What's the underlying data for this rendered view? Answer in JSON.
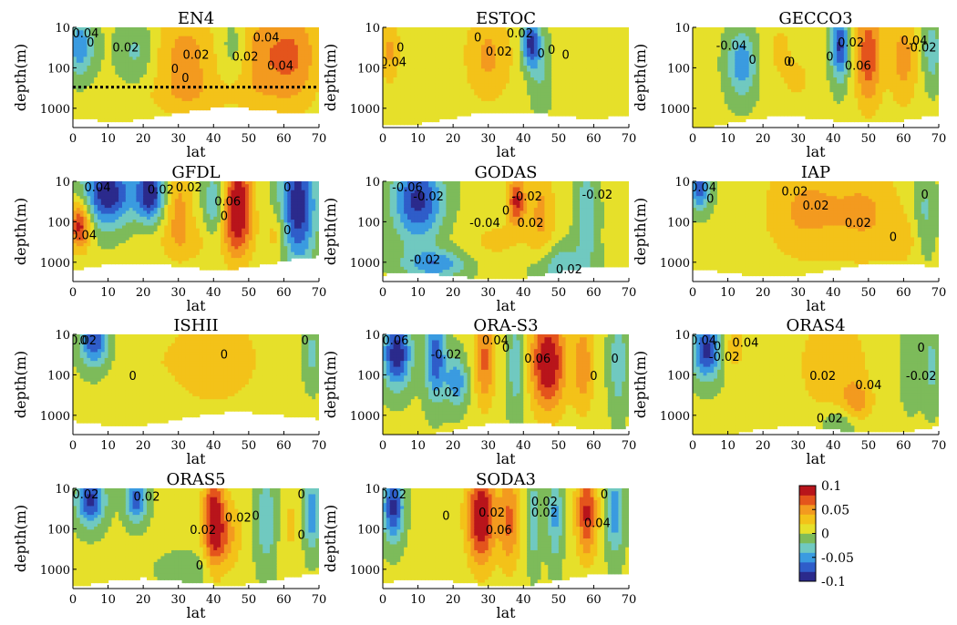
{
  "chart_data": {
    "type": "heatmap",
    "x_label": "lat",
    "y_label": "depth(m)",
    "x_ticks": [
      0,
      10,
      20,
      30,
      40,
      50,
      60,
      70
    ],
    "y_ticks": [
      "10",
      "100",
      "1000"
    ],
    "x_range": [
      0,
      70
    ],
    "y_range": [
      10,
      3000
    ],
    "y_scale": "log",
    "colormap": {
      "name": "jet-like",
      "range": [
        -0.1,
        0.1
      ],
      "ticks": [
        "0.1",
        "0.05",
        "0",
        "-0.05",
        "-0.1"
      ],
      "levels": [
        -0.1,
        -0.08,
        -0.06,
        -0.04,
        -0.02,
        0,
        0.02,
        0.04,
        0.06,
        0.08,
        0.1
      ],
      "colors": [
        "#2b2a8c",
        "#2f5dc9",
        "#3a9be0",
        "#70c9c0",
        "#7dbb5a",
        "#e6e02a",
        "#f3c219",
        "#f39a1f",
        "#e4541c",
        "#b8141b"
      ]
    },
    "panels": [
      {
        "title": "EN4",
        "bottom_depth": 1700,
        "reference_line_depth": 300,
        "contour_labels": [
          "-0.04",
          "0.02",
          "0.04",
          "0.04",
          "0.02",
          "0.02",
          "0",
          "0",
          "0"
        ],
        "features": [
          {
            "lat": 2,
            "depth": 30,
            "value": -0.06,
            "lat_width": 4,
            "depth_span": 0.7
          },
          {
            "lat": 32,
            "depth": 60,
            "value": 0.045,
            "lat_width": 9,
            "depth_span": 1.2
          },
          {
            "lat": 62,
            "depth": 50,
            "value": 0.06,
            "lat_width": 8,
            "depth_span": 1.3
          },
          {
            "lat": 52,
            "depth": 50,
            "value": 0.035,
            "lat_width": 6,
            "depth_span": 1.2
          },
          {
            "lat": 18,
            "depth": 40,
            "value": -0.03,
            "lat_width": 5,
            "depth_span": 0.8
          },
          {
            "lat": 46,
            "depth": 30,
            "value": -0.025,
            "lat_width": 4,
            "depth_span": 0.7
          },
          {
            "lat": 35,
            "depth": 500,
            "value": 0.015,
            "lat_width": 20,
            "depth_span": 0.5
          }
        ]
      },
      {
        "title": "ESTOC",
        "bottom_depth": 2000,
        "contour_labels": [
          "0.02",
          "0.02",
          "0.04",
          "0",
          "0",
          "0",
          "0",
          "0"
        ],
        "features": [
          {
            "lat": 42,
            "depth": 25,
            "value": -0.09,
            "lat_width": 2.5,
            "depth_span": 0.6
          },
          {
            "lat": 30,
            "depth": 50,
            "value": 0.04,
            "lat_width": 7,
            "depth_span": 1.2
          },
          {
            "lat": 2,
            "depth": 40,
            "value": 0.04,
            "lat_width": 3,
            "depth_span": 0.8
          },
          {
            "lat": 45,
            "depth": 100,
            "value": -0.03,
            "lat_width": 3,
            "depth_span": 1.0
          },
          {
            "lat": 55,
            "depth": 60,
            "value": 0.01,
            "lat_width": 10,
            "depth_span": 1.0
          }
        ]
      },
      {
        "title": "GECCO3",
        "bottom_depth": 2500,
        "contour_labels": [
          "-0.04",
          "0.02",
          "0.06",
          "0.04",
          "-0.02",
          "0",
          "0",
          "0",
          "0"
        ],
        "features": [
          {
            "lat": 14,
            "depth": 80,
            "value": -0.06,
            "lat_width": 4,
            "depth_span": 0.8
          },
          {
            "lat": 42,
            "depth": 30,
            "value": -0.09,
            "lat_width": 2.5,
            "depth_span": 0.8
          },
          {
            "lat": 50,
            "depth": 50,
            "value": 0.07,
            "lat_width": 4,
            "depth_span": 1.3
          },
          {
            "lat": 60,
            "depth": 60,
            "value": 0.045,
            "lat_width": 4,
            "depth_span": 1.2
          },
          {
            "lat": 68,
            "depth": 40,
            "value": -0.04,
            "lat_width": 2.5,
            "depth_span": 0.8
          },
          {
            "lat": 25,
            "depth": 40,
            "value": 0.02,
            "lat_width": 5,
            "depth_span": 1.0
          },
          {
            "lat": 30,
            "depth": 200,
            "value": 0.025,
            "lat_width": 3,
            "depth_span": 0.4
          }
        ]
      },
      {
        "title": "GFDL",
        "bottom_depth": 1500,
        "contour_labels": [
          "0.04",
          "0.02",
          "0.04",
          "0.02",
          "0.06",
          "0",
          "0",
          "0"
        ],
        "features": [
          {
            "lat": 10,
            "depth": 20,
            "value": -0.1,
            "lat_width": 7,
            "depth_span": 0.8
          },
          {
            "lat": 22,
            "depth": 20,
            "value": -0.1,
            "lat_width": 4,
            "depth_span": 0.7
          },
          {
            "lat": 2,
            "depth": 120,
            "value": 0.09,
            "lat_width": 3,
            "depth_span": 0.6
          },
          {
            "lat": 30,
            "depth": 40,
            "value": 0.04,
            "lat_width": 4,
            "depth_span": 1.1
          },
          {
            "lat": 47,
            "depth": 40,
            "value": 0.1,
            "lat_width": 4,
            "depth_span": 1.2
          },
          {
            "lat": 40,
            "depth": 40,
            "value": -0.04,
            "lat_width": 3,
            "depth_span": 1.0
          },
          {
            "lat": 64,
            "depth": 40,
            "value": -0.1,
            "lat_width": 5,
            "depth_span": 1.4
          },
          {
            "lat": 58,
            "depth": 200,
            "value": 0.03,
            "lat_width": 3,
            "depth_span": 0.6
          },
          {
            "lat": 35,
            "depth": 300,
            "value": 0.02,
            "lat_width": 15,
            "depth_span": 0.6
          }
        ]
      },
      {
        "title": "GODAS",
        "bottom_depth": 2500,
        "contour_labels": [
          "-0.06",
          "-0.02",
          "0.02",
          "-0.02",
          "-0.02",
          "0.02",
          "-0.04",
          "-0.02",
          "0"
        ],
        "features": [
          {
            "lat": 10,
            "depth": 30,
            "value": -0.09,
            "lat_width": 7,
            "depth_span": 1.0
          },
          {
            "lat": 38,
            "depth": 30,
            "value": 0.08,
            "lat_width": 2.5,
            "depth_span": 0.6
          },
          {
            "lat": 45,
            "depth": 60,
            "value": 0.04,
            "lat_width": 4,
            "depth_span": 1.3
          },
          {
            "lat": 58,
            "depth": 60,
            "value": -0.04,
            "lat_width": 3,
            "depth_span": 1.3
          },
          {
            "lat": 15,
            "depth": 1100,
            "value": -0.06,
            "lat_width": 9,
            "depth_span": 0.35
          },
          {
            "lat": 50,
            "depth": 1200,
            "value": -0.04,
            "lat_width": 8,
            "depth_span": 0.5
          },
          {
            "lat": 32,
            "depth": 300,
            "value": 0.02,
            "lat_width": 10,
            "depth_span": 0.6
          }
        ]
      },
      {
        "title": "IAP",
        "bottom_depth": 2000,
        "contour_labels": [
          "0.04",
          "0.02",
          "0.02",
          "0",
          "0",
          "0",
          "0.02"
        ],
        "features": [
          {
            "lat": 2,
            "depth": 15,
            "value": -0.08,
            "lat_width": 3,
            "depth_span": 0.5
          },
          {
            "lat": 32,
            "depth": 50,
            "value": 0.04,
            "lat_width": 12,
            "depth_span": 1.3
          },
          {
            "lat": 50,
            "depth": 60,
            "value": 0.035,
            "lat_width": 10,
            "depth_span": 1.3
          },
          {
            "lat": 66,
            "depth": 60,
            "value": -0.03,
            "lat_width": 3,
            "depth_span": 1.0
          },
          {
            "lat": 60,
            "depth": 300,
            "value": 0.02,
            "lat_width": 5,
            "depth_span": 0.6
          }
        ]
      },
      {
        "title": "ISHII",
        "bottom_depth": 1500,
        "contour_labels": [
          "0.02",
          "0",
          "0",
          "0",
          "0"
        ],
        "features": [
          {
            "lat": 6,
            "depth": 15,
            "value": -0.08,
            "lat_width": 4,
            "depth_span": 0.6
          },
          {
            "lat": 40,
            "depth": 40,
            "value": 0.03,
            "lat_width": 15,
            "depth_span": 1.3
          },
          {
            "lat": 20,
            "depth": 60,
            "value": 0.01,
            "lat_width": 6,
            "depth_span": 1.0
          },
          {
            "lat": 68,
            "depth": 30,
            "value": -0.03,
            "lat_width": 2.5,
            "depth_span": 0.8
          }
        ]
      },
      {
        "title": "ORA-S3",
        "bottom_depth": 2500,
        "contour_labels": [
          "-0.06",
          "-0.02",
          "0.02",
          "0.04",
          "0.06",
          "0",
          "0",
          "0"
        ],
        "features": [
          {
            "lat": 4,
            "depth": 30,
            "value": -0.1,
            "lat_width": 4,
            "depth_span": 0.8
          },
          {
            "lat": 15,
            "depth": 40,
            "value": -0.08,
            "lat_width": 3,
            "depth_span": 1.0
          },
          {
            "lat": 21,
            "depth": 150,
            "value": -0.06,
            "lat_width": 3,
            "depth_span": 0.6
          },
          {
            "lat": 29,
            "depth": 40,
            "value": 0.06,
            "lat_width": 3,
            "depth_span": 1.2
          },
          {
            "lat": 47,
            "depth": 50,
            "value": 0.1,
            "lat_width": 5,
            "depth_span": 1.2
          },
          {
            "lat": 57,
            "depth": 60,
            "value": 0.05,
            "lat_width": 3,
            "depth_span": 1.2
          },
          {
            "lat": 38,
            "depth": 60,
            "value": -0.04,
            "lat_width": 2.5,
            "depth_span": 1.2
          },
          {
            "lat": 67,
            "depth": 50,
            "value": -0.04,
            "lat_width": 2.5,
            "depth_span": 1.2
          }
        ]
      },
      {
        "title": "ORAS4",
        "bottom_depth": 3000,
        "contour_labels": [
          "0.04",
          "0.04",
          "0.02",
          "0.04",
          "0.02",
          "-0.02",
          "0",
          "0",
          "-0.02"
        ],
        "features": [
          {
            "lat": 4,
            "depth": 25,
            "value": -0.09,
            "lat_width": 4,
            "depth_span": 0.7
          },
          {
            "lat": 12,
            "depth": 20,
            "value": 0.03,
            "lat_width": 3,
            "depth_span": 0.6
          },
          {
            "lat": 40,
            "depth": 60,
            "value": 0.035,
            "lat_width": 10,
            "depth_span": 1.3
          },
          {
            "lat": 47,
            "depth": 500,
            "value": 0.04,
            "lat_width": 4,
            "depth_span": 0.5
          },
          {
            "lat": 42,
            "depth": 1500,
            "value": -0.03,
            "lat_width": 6,
            "depth_span": 0.4
          },
          {
            "lat": 62,
            "depth": 60,
            "value": -0.02,
            "lat_width": 3,
            "depth_span": 1.0
          },
          {
            "lat": 68,
            "depth": 60,
            "value": -0.03,
            "lat_width": 2.5,
            "depth_span": 1.0
          }
        ]
      },
      {
        "title": "ORAS5",
        "bottom_depth": 2500,
        "contour_labels": [
          "-0.02",
          "0.02",
          "0.02",
          "0.02",
          "0",
          "0",
          "0",
          "0"
        ],
        "features": [
          {
            "lat": 5,
            "depth": 20,
            "value": -0.09,
            "lat_width": 4,
            "depth_span": 0.6
          },
          {
            "lat": 18,
            "depth": 20,
            "value": -0.08,
            "lat_width": 3,
            "depth_span": 0.5
          },
          {
            "lat": 40,
            "depth": 60,
            "value": 0.09,
            "lat_width": 3,
            "depth_span": 1.2
          },
          {
            "lat": 44,
            "depth": 150,
            "value": 0.04,
            "lat_width": 4,
            "depth_span": 0.9
          },
          {
            "lat": 55,
            "depth": 60,
            "value": -0.04,
            "lat_width": 3,
            "depth_span": 1.2
          },
          {
            "lat": 62,
            "depth": 80,
            "value": 0.02,
            "lat_width": 3,
            "depth_span": 1.0
          },
          {
            "lat": 68,
            "depth": 40,
            "value": -0.06,
            "lat_width": 2.5,
            "depth_span": 0.9
          },
          {
            "lat": 33,
            "depth": 1000,
            "value": -0.02,
            "lat_width": 8,
            "depth_span": 0.4
          }
        ]
      },
      {
        "title": "SODA3",
        "bottom_depth": 2500,
        "contour_labels": [
          "0.02",
          "0.02",
          "0.06",
          "0.02",
          "0.02",
          "0.04",
          "0",
          "0"
        ],
        "features": [
          {
            "lat": 3,
            "depth": 30,
            "value": -0.09,
            "lat_width": 3,
            "depth_span": 0.8
          },
          {
            "lat": 28,
            "depth": 50,
            "value": 0.1,
            "lat_width": 4,
            "depth_span": 1.2
          },
          {
            "lat": 36,
            "depth": 60,
            "value": 0.06,
            "lat_width": 3,
            "depth_span": 1.2
          },
          {
            "lat": 43,
            "depth": 60,
            "value": -0.04,
            "lat_width": 2,
            "depth_span": 1.1
          },
          {
            "lat": 49,
            "depth": 50,
            "value": -0.05,
            "lat_width": 2,
            "depth_span": 1.1
          },
          {
            "lat": 58,
            "depth": 40,
            "value": 0.08,
            "lat_width": 3,
            "depth_span": 1.1
          },
          {
            "lat": 66,
            "depth": 40,
            "value": -0.06,
            "lat_width": 2.5,
            "depth_span": 1.0
          },
          {
            "lat": 15,
            "depth": 60,
            "value": 0.01,
            "lat_width": 6,
            "depth_span": 1.0
          }
        ]
      }
    ]
  }
}
